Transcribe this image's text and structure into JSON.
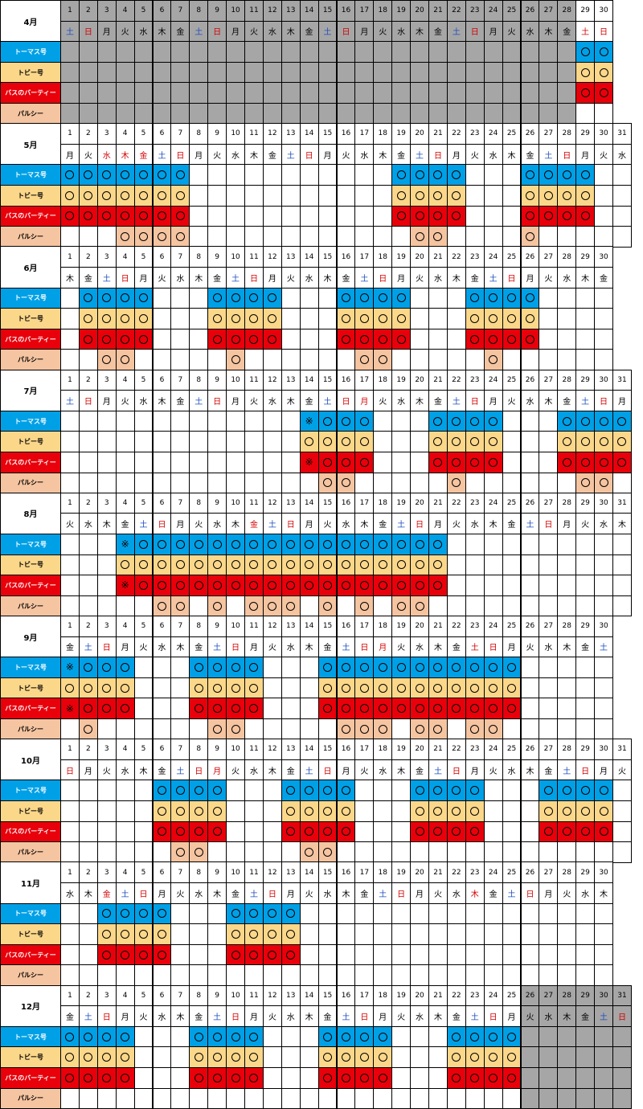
{
  "vehicles": [
    {
      "key": "thomas",
      "label": "トーマス号"
    },
    {
      "key": "toby",
      "label": "トビー号"
    },
    {
      "key": "bus",
      "label": "バスのバーティー"
    },
    {
      "key": "parsley",
      "label": "パルシー"
    }
  ],
  "colors": {
    "thomas": "#00a0e6",
    "toby": "#fbd78a",
    "bus": "#e8000b",
    "parsley": "#f5c4a0",
    "closed": "#a6a6a6"
  },
  "symbols": {
    "run": "○",
    "special": "※"
  },
  "months": [
    {
      "label": "4月",
      "days": 30,
      "weekdays": "土日月火水木金土日月火水木金土日月火水木金土日月火水木金土日",
      "holidays": [
        29
      ],
      "closed": [
        1,
        2,
        3,
        4,
        5,
        6,
        7,
        8,
        9,
        10,
        11,
        12,
        13,
        14,
        15,
        16,
        17,
        18,
        19,
        20,
        21,
        22,
        23,
        24,
        25,
        26,
        27,
        28
      ],
      "closed_rows": [
        0,
        1,
        2,
        3
      ],
      "runs": {
        "thomas": [
          29,
          30
        ],
        "toby": [
          29,
          30
        ],
        "bus": [
          29,
          30
        ],
        "parsley": []
      },
      "special": {}
    },
    {
      "label": "5月",
      "days": 31,
      "weekdays": "月火水木金土日月火水木金土日月火水木金土日月火水木金土日月火水",
      "holidays": [
        3,
        4,
        5
      ],
      "runs": {
        "thomas": [
          1,
          2,
          3,
          4,
          5,
          6,
          7,
          19,
          20,
          21,
          22,
          26,
          27,
          28,
          29
        ],
        "toby": [
          1,
          2,
          3,
          4,
          5,
          6,
          7,
          19,
          20,
          21,
          22,
          26,
          27,
          28,
          29
        ],
        "bus": [
          1,
          2,
          3,
          4,
          5,
          6,
          7,
          19,
          20,
          21,
          22,
          26,
          27,
          28,
          29
        ],
        "parsley": [
          4,
          5,
          6,
          7,
          20,
          21,
          26
        ]
      },
      "special": {}
    },
    {
      "label": "6月",
      "days": 30,
      "weekdays": "木金土日月火水木金土日月火水木金土日月火水木金土日月火水木金",
      "holidays": [],
      "runs": {
        "thomas": [
          2,
          3,
          4,
          5,
          9,
          10,
          11,
          12,
          16,
          17,
          18,
          19,
          23,
          24,
          25,
          26
        ],
        "toby": [
          2,
          3,
          4,
          5,
          9,
          10,
          11,
          12,
          16,
          17,
          18,
          19,
          23,
          24,
          25,
          26
        ],
        "bus": [
          2,
          3,
          4,
          5,
          9,
          10,
          11,
          12,
          16,
          17,
          18,
          19,
          23,
          24,
          25,
          26
        ],
        "parsley": [
          3,
          4,
          10,
          17,
          18,
          24
        ]
      },
      "special": {}
    },
    {
      "label": "7月",
      "days": 31,
      "weekdays": "土日月火水木金土日月火水木金土日月火水木金土日月火水木金土日月",
      "holidays": [
        17
      ],
      "runs": {
        "thomas": [
          14,
          15,
          16,
          17,
          21,
          22,
          23,
          24,
          28,
          29,
          30,
          31
        ],
        "toby": [
          14,
          15,
          16,
          17,
          21,
          22,
          23,
          24,
          28,
          29,
          30,
          31
        ],
        "bus": [
          14,
          15,
          16,
          17,
          21,
          22,
          23,
          24,
          28,
          29,
          30,
          31
        ],
        "parsley": [
          15,
          16,
          22,
          29,
          30
        ]
      },
      "special": {
        "thomas": [
          14
        ],
        "bus": [
          14
        ]
      }
    },
    {
      "label": "8月",
      "days": 31,
      "weekdays": "火水木金土日月火水木金土日月火水木金土日月火水木金土日月火水木",
      "holidays": [
        11
      ],
      "runs": {
        "thomas": [
          4,
          5,
          6,
          7,
          8,
          9,
          10,
          11,
          12,
          13,
          14,
          15,
          16,
          17,
          18,
          19,
          20,
          21
        ],
        "toby": [
          4,
          5,
          6,
          7,
          8,
          9,
          10,
          11,
          12,
          13,
          14,
          15,
          16,
          17,
          18,
          19,
          20,
          21
        ],
        "bus": [
          4,
          5,
          6,
          7,
          8,
          9,
          10,
          11,
          12,
          13,
          14,
          15,
          16,
          17,
          18,
          19,
          20,
          21
        ],
        "parsley": [
          6,
          7,
          9,
          11,
          12,
          13,
          15,
          17,
          19,
          20
        ]
      },
      "special": {
        "thomas": [
          4
        ],
        "bus": [
          4
        ]
      }
    },
    {
      "label": "9月",
      "days": 30,
      "weekdays": "金土日月火水木金土日月火水木金土日月火水木金土日月火水木金土",
      "holidays": [
        18,
        23
      ],
      "runs": {
        "thomas": [
          1,
          2,
          3,
          4,
          8,
          9,
          10,
          11,
          15,
          16,
          17,
          18,
          19,
          20,
          21,
          22,
          23,
          24,
          25
        ],
        "toby": [
          1,
          2,
          3,
          4,
          8,
          9,
          10,
          11,
          15,
          16,
          17,
          18,
          19,
          20,
          21,
          22,
          23,
          24,
          25
        ],
        "bus": [
          1,
          2,
          3,
          4,
          8,
          9,
          10,
          11,
          15,
          16,
          17,
          18,
          19,
          20,
          21,
          22,
          23,
          24,
          25
        ],
        "parsley": [
          2,
          9,
          10,
          16,
          17,
          18,
          20,
          21,
          23,
          24
        ]
      },
      "special": {
        "thomas": [
          1
        ],
        "bus": [
          1
        ]
      }
    },
    {
      "label": "10月",
      "days": 31,
      "weekdays": "日月火水木金土日月火水木金土日月火水木金土日月火水木金土日月火",
      "holidays": [
        9
      ],
      "runs": {
        "thomas": [
          6,
          7,
          8,
          9,
          13,
          14,
          15,
          16,
          20,
          21,
          22,
          23,
          27,
          28,
          29,
          30
        ],
        "toby": [
          6,
          7,
          8,
          9,
          13,
          14,
          15,
          16,
          20,
          21,
          22,
          23,
          27,
          28,
          29,
          30
        ],
        "bus": [
          6,
          7,
          8,
          9,
          13,
          14,
          15,
          16,
          20,
          21,
          22,
          23,
          27,
          28,
          29,
          30
        ],
        "parsley": [
          7,
          8,
          14,
          15
        ]
      },
      "special": {}
    },
    {
      "label": "11月",
      "days": 30,
      "weekdays": "水木金土日月火水木金土日月火水木金土日月火水木金土日月火水木",
      "holidays": [
        3,
        23
      ],
      "runs": {
        "thomas": [
          3,
          4,
          5,
          6,
          10,
          11,
          12,
          13
        ],
        "toby": [
          3,
          4,
          5,
          6,
          10,
          11,
          12,
          13
        ],
        "bus": [
          3,
          4,
          5,
          6,
          10,
          11,
          12,
          13
        ],
        "parsley": []
      },
      "special": {}
    },
    {
      "label": "12月",
      "days": 31,
      "weekdays": "金土日月火水木金土日月火水木金土日月火水木金土日月火水木金土日",
      "holidays": [],
      "closed": [
        26,
        27,
        28,
        29,
        30,
        31
      ],
      "closed_rows": [
        0,
        1,
        2,
        3
      ],
      "closed_header": true,
      "runs": {
        "thomas": [
          1,
          2,
          3,
          4,
          8,
          9,
          10,
          11,
          15,
          16,
          17,
          18,
          22,
          23,
          24,
          25
        ],
        "toby": [
          1,
          2,
          3,
          4,
          8,
          9,
          10,
          11,
          15,
          16,
          17,
          18,
          22,
          23,
          24,
          25
        ],
        "bus": [
          1,
          2,
          3,
          4,
          8,
          9,
          10,
          11,
          15,
          16,
          17,
          18,
          22,
          23,
          24,
          25
        ],
        "parsley": []
      },
      "special": {}
    }
  ]
}
